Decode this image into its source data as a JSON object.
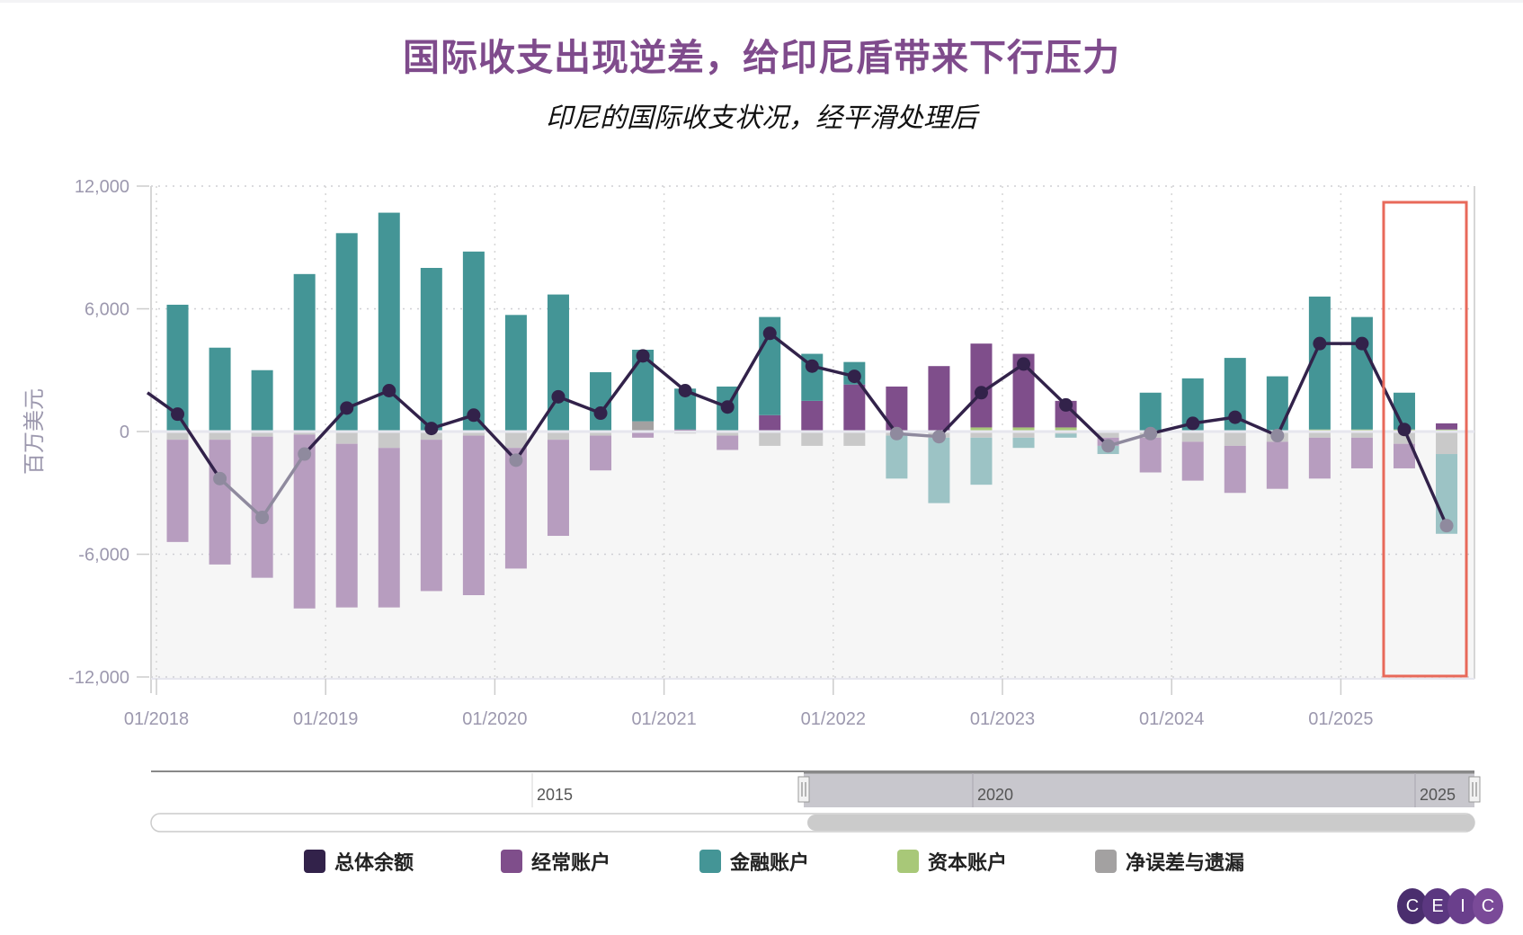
{
  "title": "国际收支出现逆差，给印尼盾带来下行压力",
  "subtitle": "印尼的国际收支状况，经平滑处理后",
  "legend": [
    {
      "label": "总体余额",
      "color": "#32224a"
    },
    {
      "label": "经常账户",
      "color": "#7f4e8b"
    },
    {
      "label": "金融账户",
      "color": "#449596"
    },
    {
      "label": "资本账户",
      "color": "#a8c878"
    },
    {
      "label": "净误差与遗漏",
      "color": "#a3a1a1"
    }
  ],
  "navigator": {
    "labels": [
      "2015",
      "2020",
      "2025"
    ],
    "handle_left_icon": "grip-handle-icon",
    "handle_right_icon": "grip-handle-icon"
  },
  "logo": {
    "letters": [
      "C",
      "E",
      "I",
      "C"
    ]
  },
  "highlight": {
    "color": "#e8695a",
    "note": "2025Q2–2025Q3"
  },
  "chart_data": {
    "type": "bar",
    "stacked": true,
    "title": "国际收支出现逆差，给印尼盾带来下行压力",
    "subtitle": "印尼的国际收支状况，经平滑处理后",
    "xlabel": "",
    "ylabel": "百万美元",
    "ylim": [
      -12000,
      12000
    ],
    "yticks": [
      12000,
      6000,
      0,
      -6000,
      -12000
    ],
    "ytick_labels": [
      "12,000",
      "6,000",
      "0",
      "-6,000",
      "-12,000"
    ],
    "xtick_labels": [
      "01/2018",
      "01/2019",
      "01/2020",
      "01/2021",
      "01/2022",
      "01/2023",
      "01/2024",
      "01/2025"
    ],
    "grid": true,
    "legend_position": "bottom",
    "categories": [
      "2018Q1",
      "2018Q2",
      "2018Q3",
      "2018Q4",
      "2019Q1",
      "2019Q2",
      "2019Q3",
      "2019Q4",
      "2020Q1",
      "2020Q2",
      "2020Q3",
      "2020Q4",
      "2021Q1",
      "2021Q2",
      "2021Q3",
      "2021Q4",
      "2022Q1",
      "2022Q2",
      "2022Q3",
      "2022Q4",
      "2023Q1",
      "2023Q2",
      "2023Q3",
      "2023Q4",
      "2024Q1",
      "2024Q2",
      "2024Q3",
      "2024Q4",
      "2025Q1",
      "2025Q2",
      "2025Q3"
    ],
    "series": [
      {
        "name": "经常账户",
        "type": "bar",
        "color": "#7f4e8b",
        "values": [
          -5000,
          -6100,
          -6900,
          -8500,
          -8000,
          -7800,
          -7400,
          -7800,
          -5900,
          -4700,
          -1700,
          -300,
          100,
          -700,
          800,
          1500,
          2300,
          2200,
          3200,
          4100,
          3600,
          1300,
          -400,
          -1700,
          -1900,
          -2300,
          -2300,
          -2000,
          -1500,
          -1200,
          300
        ]
      },
      {
        "name": "金融账户",
        "type": "bar",
        "color": "#449596",
        "values": [
          6200,
          4100,
          3000,
          7700,
          9700,
          10700,
          8000,
          8800,
          5700,
          6700,
          2900,
          3500,
          2000,
          2200,
          4800,
          2300,
          1100,
          -2100,
          -3200,
          -2300,
          -500,
          -200,
          -400,
          1900,
          2600,
          3600,
          2700,
          6500,
          5500,
          1800,
          -3900
        ]
      },
      {
        "name": "资本账户",
        "type": "bar",
        "color": "#a8c878",
        "values": [
          0,
          0,
          0,
          0,
          0,
          0,
          0,
          0,
          0,
          0,
          0,
          0,
          0,
          0,
          0,
          0,
          0,
          0,
          0,
          200,
          200,
          200,
          0,
          0,
          0,
          0,
          0,
          100,
          100,
          100,
          100
        ]
      },
      {
        "name": "净误差与遗漏",
        "type": "bar",
        "color": "#a3a1a1",
        "values": [
          -400,
          -400,
          -250,
          -150,
          -600,
          -800,
          -400,
          -200,
          -800,
          -400,
          -200,
          500,
          -100,
          -200,
          -700,
          -700,
          -700,
          -200,
          -300,
          -300,
          -300,
          -100,
          -300,
          -300,
          -500,
          -700,
          -500,
          -300,
          -300,
          -600,
          -1100
        ]
      },
      {
        "name": "总体余额",
        "type": "line",
        "color": "#32224a",
        "start_value_2017Q4": 1900,
        "values": [
          850,
          -2300,
          -4200,
          -1100,
          1150,
          2000,
          150,
          800,
          -1400,
          1700,
          900,
          3700,
          2000,
          1200,
          4800,
          3200,
          2700,
          -100,
          -250,
          1900,
          3300,
          1300,
          -700,
          -100,
          400,
          700,
          -200,
          4300,
          4300,
          100,
          -4600
        ]
      }
    ]
  }
}
